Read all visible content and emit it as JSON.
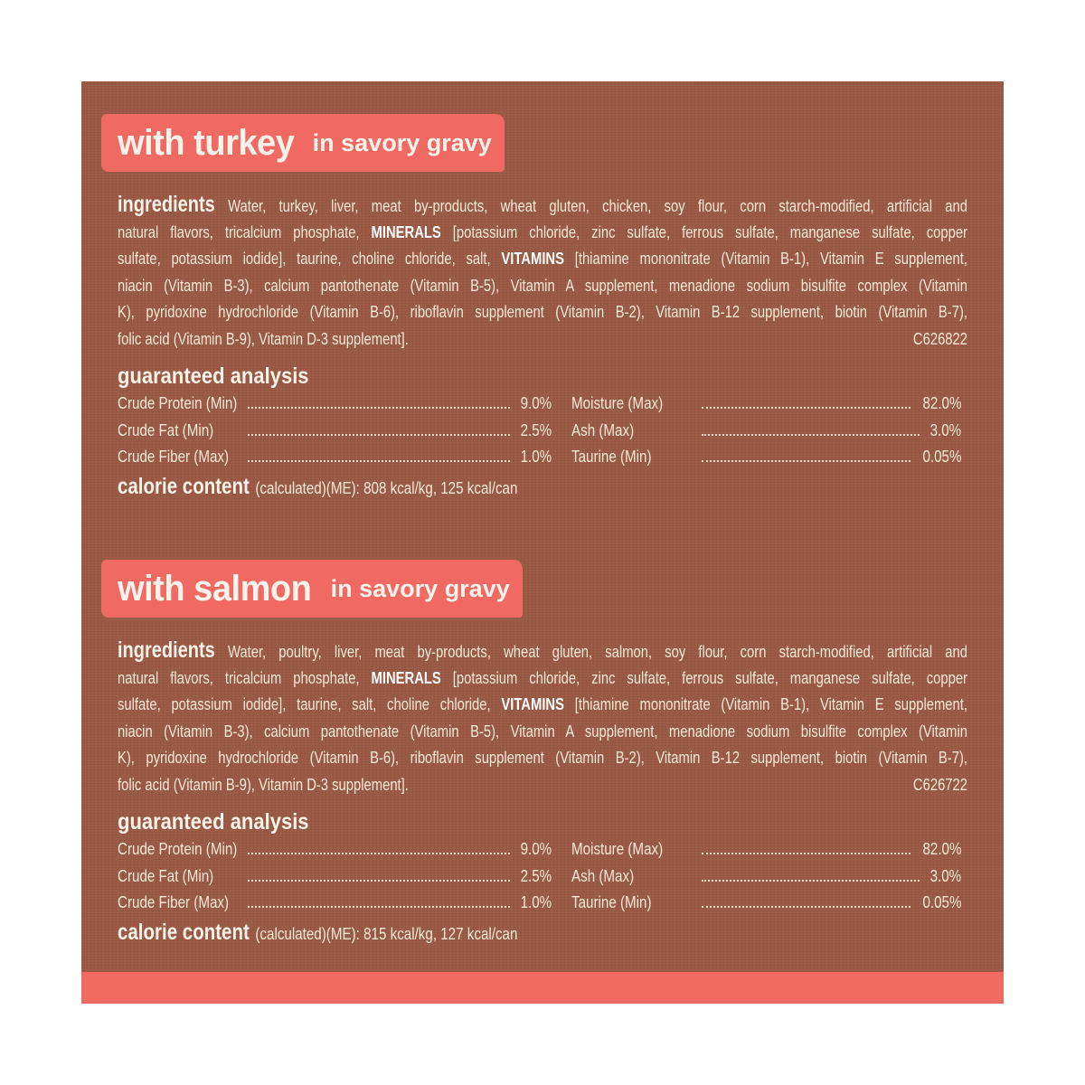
{
  "colors": {
    "panel": "#9a5a44",
    "accent": "#f06a63",
    "text": "#f6e9d6"
  },
  "sections": [
    {
      "title_main": "with turkey",
      "title_sub": "in savory gravy",
      "ingredients_label": "ingredients",
      "lines": [
        "Water, turkey, liver, meat by-products, wheat gluten, chicken, soy flour, corn starch-modified, artificial and",
        [
          "natural flavors, tricalcium phosphate, ",
          "MINERALS",
          " [potassium chloride, zinc sulfate, ferrous sulfate, manganese sulfate, copper"
        ],
        [
          "sulfate, potassium iodide], taurine, choline chloride, salt, ",
          "VITAMINS",
          " [thiamine mononitrate (Vitamin B-1), Vitamin E supplement,"
        ],
        "niacin (Vitamin B-3), calcium pantothenate (Vitamin B-5), Vitamin A supplement, menadione sodium bisulfite complex (Vitamin",
        "K), pyridoxine hydrochloride (Vitamin B-6), riboflavin supplement (Vitamin B-2), Vitamin B-12 supplement, biotin (Vitamin B-7),",
        "folic acid (Vitamin B-9), Vitamin D-3 supplement]."
      ],
      "code": "C626822",
      "analysis_label": "guaranteed analysis",
      "analysis_left": [
        {
          "label": "Crude Protein (Min)",
          "value": "9.0%"
        },
        {
          "label": "Crude Fat (Min)",
          "value": "2.5%"
        },
        {
          "label": "Crude Fiber (Max)",
          "value": "1.0%"
        }
      ],
      "analysis_right": [
        {
          "label": "Moisture (Max)",
          "value": "82.0%"
        },
        {
          "label": "Ash (Max)",
          "value": "3.0%"
        },
        {
          "label": "Taurine (Min)",
          "value": "0.05%"
        }
      ],
      "calorie_label": "calorie content",
      "calorie_text": "(calculated)(ME): 808 kcal/kg, 125 kcal/can"
    },
    {
      "title_main": "with salmon",
      "title_sub": "in savory gravy",
      "ingredients_label": "ingredients",
      "lines": [
        "Water, poultry, liver, meat by-products, wheat gluten, salmon, soy flour, corn starch-modified, artificial and",
        [
          "natural flavors, tricalcium phosphate, ",
          "MINERALS",
          " [potassium chloride, zinc sulfate, ferrous sulfate, manganese sulfate, copper"
        ],
        [
          "sulfate, potassium iodide], taurine, salt, choline chloride, ",
          "VITAMINS",
          " [thiamine mononitrate (Vitamin B-1), Vitamin E supplement,"
        ],
        "niacin (Vitamin B-3), calcium pantothenate (Vitamin B-5), Vitamin A supplement, menadione sodium bisulfite complex (Vitamin",
        "K), pyridoxine hydrochloride (Vitamin B-6), riboflavin supplement (Vitamin B-2), Vitamin B-12 supplement, biotin (Vitamin B-7),",
        "folic acid (Vitamin B-9), Vitamin D-3 supplement]."
      ],
      "code": "C626722",
      "analysis_label": "guaranteed analysis",
      "analysis_left": [
        {
          "label": "Crude Protein (Min)",
          "value": "9.0%"
        },
        {
          "label": "Crude Fat (Min)",
          "value": "2.5%"
        },
        {
          "label": "Crude Fiber (Max)",
          "value": "1.0%"
        }
      ],
      "analysis_right": [
        {
          "label": "Moisture (Max)",
          "value": "82.0%"
        },
        {
          "label": "Ash (Max)",
          "value": "3.0%"
        },
        {
          "label": "Taurine (Min)",
          "value": "0.05%"
        }
      ],
      "calorie_label": "calorie content",
      "calorie_text": "(calculated)(ME): 815 kcal/kg, 127 kcal/can"
    }
  ]
}
